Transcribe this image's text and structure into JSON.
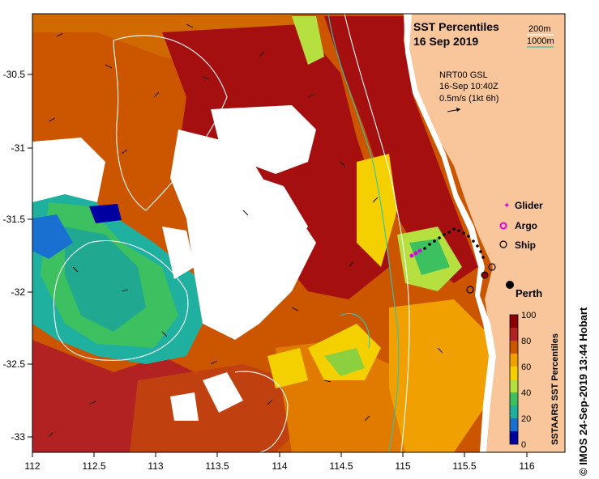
{
  "title": "SST Percentiles",
  "date": "16 Sep 2019",
  "contours": {
    "line1": "200m",
    "line2": "1000m",
    "color2": "#2ec4b6"
  },
  "current_info": {
    "line1": "NRT00 GSL",
    "line2": "16-Sep 10:40Z",
    "line3": "0.5m/s (1kt 6h)"
  },
  "legend": {
    "glider": "Glider",
    "argo": "Argo",
    "ship": "Ship",
    "glider_color": "#e000e0",
    "argo_color": "#e000e0"
  },
  "city": "Perth",
  "colorbar": {
    "title": "SSTAARS SST Percentiles",
    "ticks": [
      "100",
      "80",
      "60",
      "40",
      "20",
      "0"
    ],
    "colors": [
      "#8b0000",
      "#b22222",
      "#cc5500",
      "#e07b00",
      "#f0a000",
      "#f5d000",
      "#b6e040",
      "#3cc060",
      "#20b0a0",
      "#1a70d0",
      "#0000a0"
    ]
  },
  "axes": {
    "x_ticks": [
      "112",
      "112.5",
      "113",
      "113.5",
      "114",
      "114.5",
      "115",
      "115.5",
      "116"
    ],
    "y_ticks": [
      "-30.5",
      "-31",
      "-31.5",
      "-32",
      "-32.5",
      "-33"
    ],
    "lon_range": [
      112,
      116.3
    ],
    "lat_range": [
      -33.15,
      -30.1
    ]
  },
  "credit": "© IMOS 24-Sep-2019 13:44 Hobart",
  "colors": {
    "land": "#f8c69a",
    "cloud": "#ffffff"
  }
}
